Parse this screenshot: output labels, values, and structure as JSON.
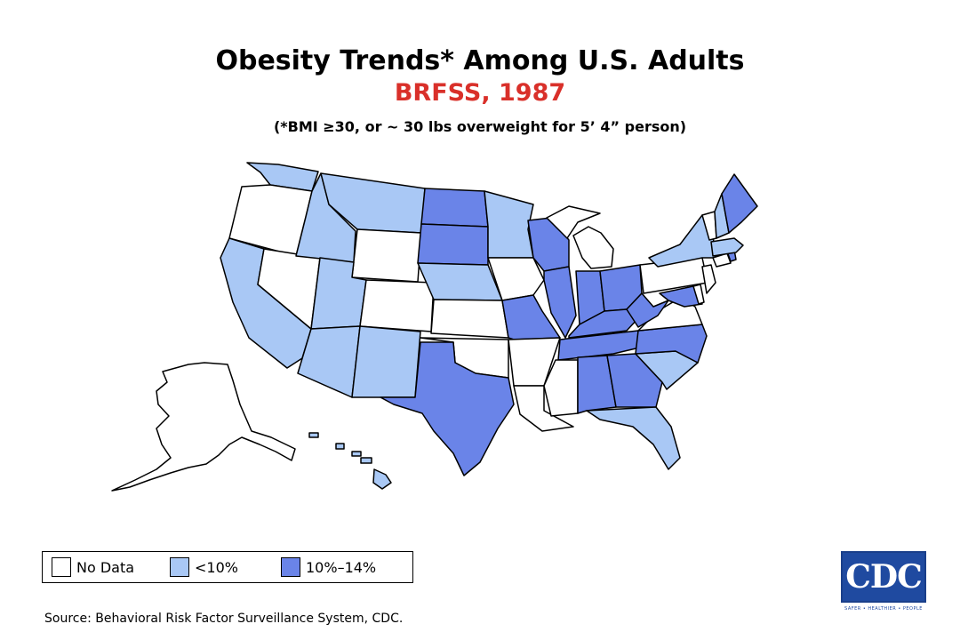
{
  "header": {
    "title": "Obesity Trends* Among U.S. Adults",
    "subtitle": "BRFSS, 1987",
    "note": "(*BMI ≥30, or ~ 30 lbs overweight for 5’ 4” person)"
  },
  "colors": {
    "no_data": "#ffffff",
    "lt10": "#a9c8f5",
    "p10_14": "#6a84e8",
    "subtitle_red": "#d9302a"
  },
  "legend": [
    {
      "label": "No Data",
      "category": "no_data"
    },
    {
      "label": "<10%",
      "category": "lt10"
    },
    {
      "label": "10%–14%",
      "category": "p10_14"
    }
  ],
  "map_data": {
    "states": {
      "WA": "lt10",
      "OR": "no_data",
      "CA": "lt10",
      "NV": "no_data",
      "ID": "lt10",
      "MT": "lt10",
      "WY": "no_data",
      "UT": "lt10",
      "AZ": "lt10",
      "CO": "no_data",
      "NM": "lt10",
      "ND": "p10_14",
      "SD": "p10_14",
      "NE": "lt10",
      "KS": "no_data",
      "OK": "no_data",
      "TX": "p10_14",
      "MN": "lt10",
      "IA": "no_data",
      "MO": "p10_14",
      "AR": "no_data",
      "LA": "no_data",
      "WI": "p10_14",
      "IL": "p10_14",
      "MI": "no_data",
      "IN": "p10_14",
      "OH": "p10_14",
      "KY": "p10_14",
      "TN": "p10_14",
      "MS": "no_data",
      "AL": "p10_14",
      "GA": "p10_14",
      "FL": "lt10",
      "SC": "lt10",
      "NC": "p10_14",
      "VA": "no_data",
      "WV": "p10_14",
      "MD": "p10_14",
      "DE": "no_data",
      "PA": "no_data",
      "NJ": "no_data",
      "NY": "lt10",
      "CT": "no_data",
      "RI": "p10_14",
      "MA": "lt10",
      "VT": "no_data",
      "NH": "lt10",
      "ME": "p10_14",
      "AK": "no_data",
      "HI": "lt10"
    }
  },
  "source": "Source: Behavioral Risk Factor Surveillance System, CDC.",
  "logo": {
    "text": "CDC",
    "tagline": "SAFER • HEALTHIER • PEOPLE"
  }
}
